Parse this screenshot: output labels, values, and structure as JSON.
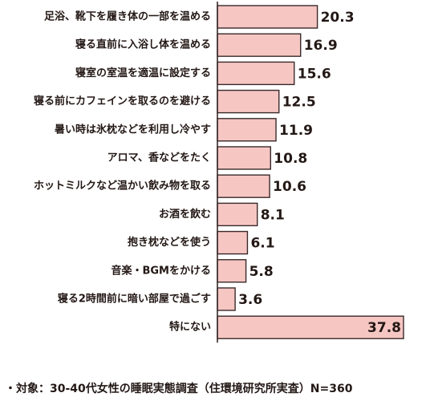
{
  "chart_data": {
    "type": "bar",
    "orientation": "horizontal",
    "categories": [
      "足浴、靴下を履き体の一部を温める",
      "寝る直前に入浴し体を温める",
      "寝室の室温を適温に設定する",
      "寝る前にカフェインを取るのを避ける",
      "暑い時は氷枕などを利用し冷やす",
      "アロマ、香などをたく",
      "ホットミルクなど温かい飲み物を取る",
      "お酒を飲む",
      "抱き枕などを使う",
      "音楽・BGMをかける",
      "寝る2時間前に暗い部屋で過ごす",
      "特にない"
    ],
    "values": [
      20.3,
      16.9,
      15.6,
      12.5,
      11.9,
      10.8,
      10.6,
      8.1,
      6.1,
      5.8,
      3.6,
      37.8
    ],
    "value_labels": [
      "20.3",
      "16.9",
      "15.6",
      "12.5",
      "11.9",
      "10.8",
      "10.6",
      "8.1",
      "6.1",
      "5.8",
      "3.6",
      "37.8"
    ],
    "xlim": [
      0,
      37.8
    ],
    "grid": false,
    "bar_color": "#f6c6c3",
    "edge_color": "#3a2a2a"
  },
  "footnote": "・対象：30-40代女性の睡眠実態調査（住環境研究所実査）N=360"
}
